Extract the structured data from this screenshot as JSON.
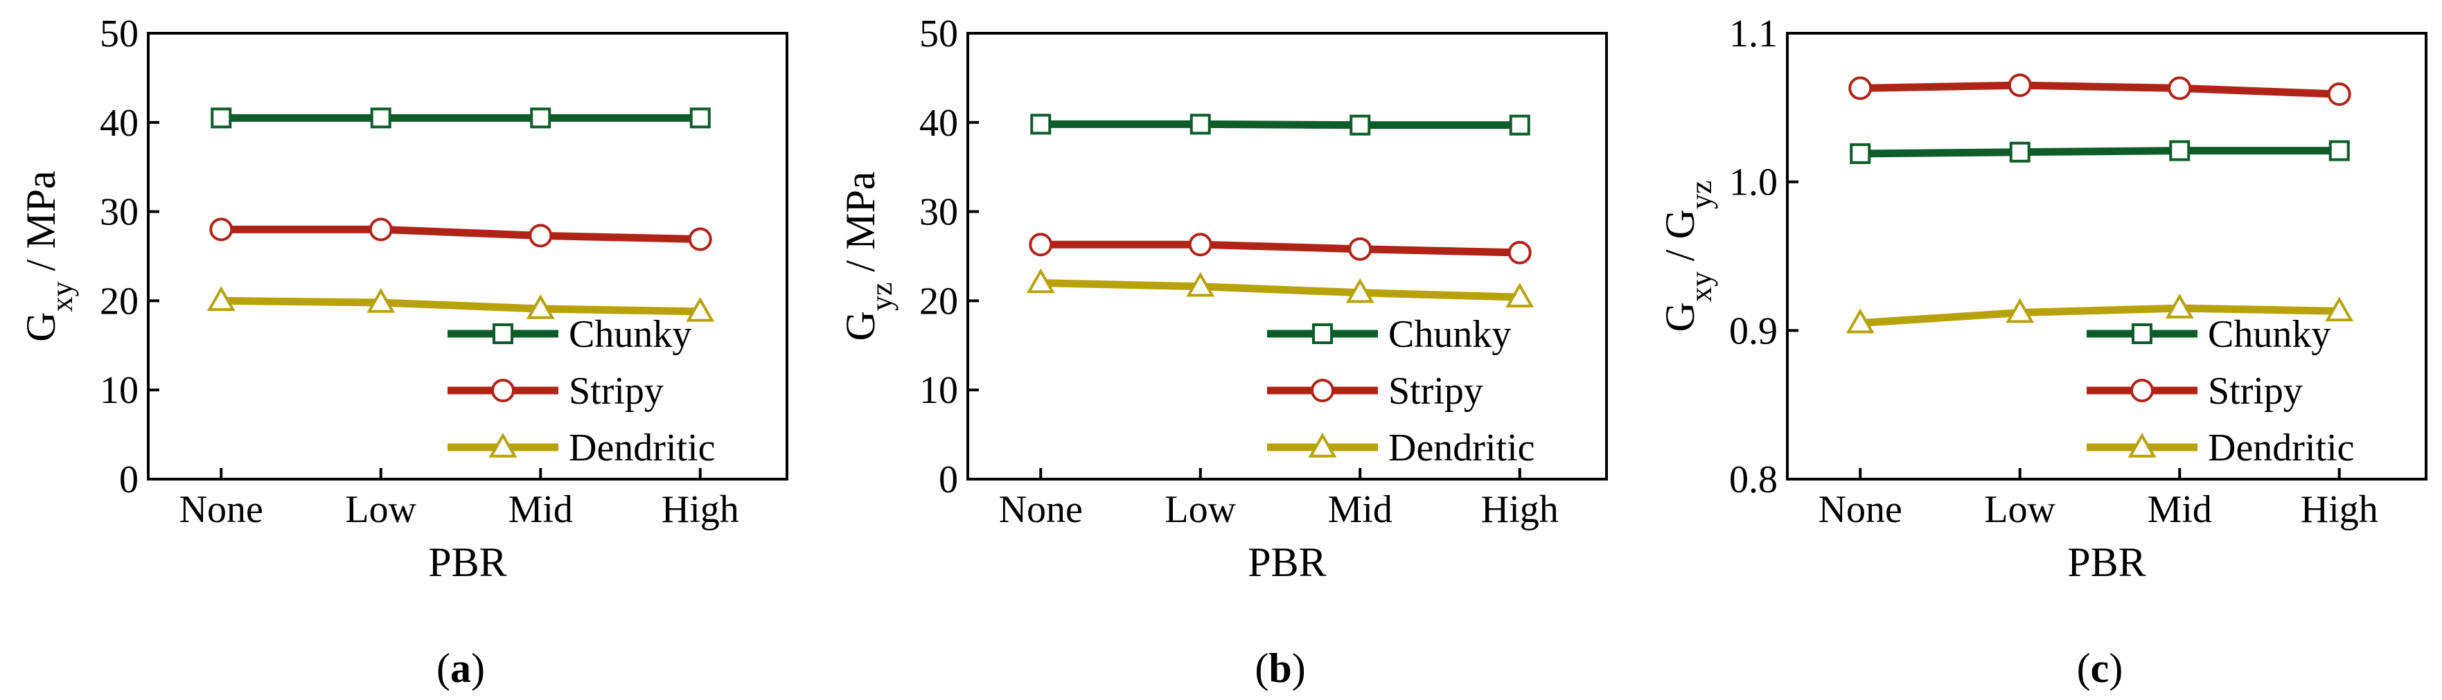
{
  "colors": {
    "chunky": "#0d5c2a",
    "stripy": "#b02418",
    "dendritic": "#b8a20c",
    "axis": "#000000",
    "background": "#ffffff"
  },
  "chart_data": [
    {
      "type": "line",
      "panel_label_prefix": "(",
      "panel_label_letter": "a",
      "panel_label_suffix": ")",
      "xlabel": "PBR",
      "ylabel_main": "G",
      "ylabel_sub": "xy",
      "ylabel_rest": " / MPa",
      "categories": [
        "None",
        "Low",
        "Mid",
        "High"
      ],
      "ylim": [
        0,
        50
      ],
      "yticks": [
        "0",
        "10",
        "20",
        "30",
        "40",
        "50"
      ],
      "ytick_values": [
        0,
        10,
        20,
        30,
        40,
        50
      ],
      "legend_position": "lower-right",
      "series": [
        {
          "name": "Chunky",
          "marker": "square",
          "values": [
            40.5,
            40.5,
            40.5,
            40.5
          ]
        },
        {
          "name": "Stripy",
          "marker": "circle",
          "values": [
            28.0,
            28.0,
            27.3,
            26.9
          ]
        },
        {
          "name": "Dendritic",
          "marker": "triangle",
          "values": [
            20.0,
            19.8,
            19.1,
            18.8
          ]
        }
      ]
    },
    {
      "type": "line",
      "panel_label_prefix": "(",
      "panel_label_letter": "b",
      "panel_label_suffix": ")",
      "xlabel": "PBR",
      "ylabel_main": "G",
      "ylabel_sub": "yz",
      "ylabel_rest": " / MPa",
      "categories": [
        "None",
        "Low",
        "Mid",
        "High"
      ],
      "ylim": [
        0,
        50
      ],
      "yticks": [
        "0",
        "10",
        "20",
        "30",
        "40",
        "50"
      ],
      "ytick_values": [
        0,
        10,
        20,
        30,
        40,
        50
      ],
      "legend_position": "lower-right",
      "series": [
        {
          "name": "Chunky",
          "marker": "square",
          "values": [
            39.8,
            39.8,
            39.7,
            39.7
          ]
        },
        {
          "name": "Stripy",
          "marker": "circle",
          "values": [
            26.3,
            26.3,
            25.8,
            25.4
          ]
        },
        {
          "name": "Dendritic",
          "marker": "triangle",
          "values": [
            22.0,
            21.6,
            20.9,
            20.4
          ]
        }
      ]
    },
    {
      "type": "line",
      "panel_label_prefix": "(",
      "panel_label_letter": "c",
      "panel_label_suffix": ")",
      "xlabel": "PBR",
      "ylabel_main": "G",
      "ylabel_sub": "xy",
      "ylabel_rest": " / G",
      "ylabel_sub2": "yz",
      "categories": [
        "None",
        "Low",
        "Mid",
        "High"
      ],
      "ylim": [
        0.8,
        1.1
      ],
      "yticks": [
        "0.8",
        "0.9",
        "1.0",
        "1.1"
      ],
      "ytick_values": [
        0.8,
        0.9,
        1.0,
        1.1
      ],
      "legend_position": "lower-right",
      "series": [
        {
          "name": "Chunky",
          "marker": "square",
          "values": [
            1.019,
            1.02,
            1.021,
            1.021
          ]
        },
        {
          "name": "Stripy",
          "marker": "circle",
          "values": [
            1.063,
            1.065,
            1.063,
            1.059
          ]
        },
        {
          "name": "Dendritic",
          "marker": "triangle",
          "values": [
            0.905,
            0.912,
            0.915,
            0.913
          ]
        }
      ]
    }
  ]
}
